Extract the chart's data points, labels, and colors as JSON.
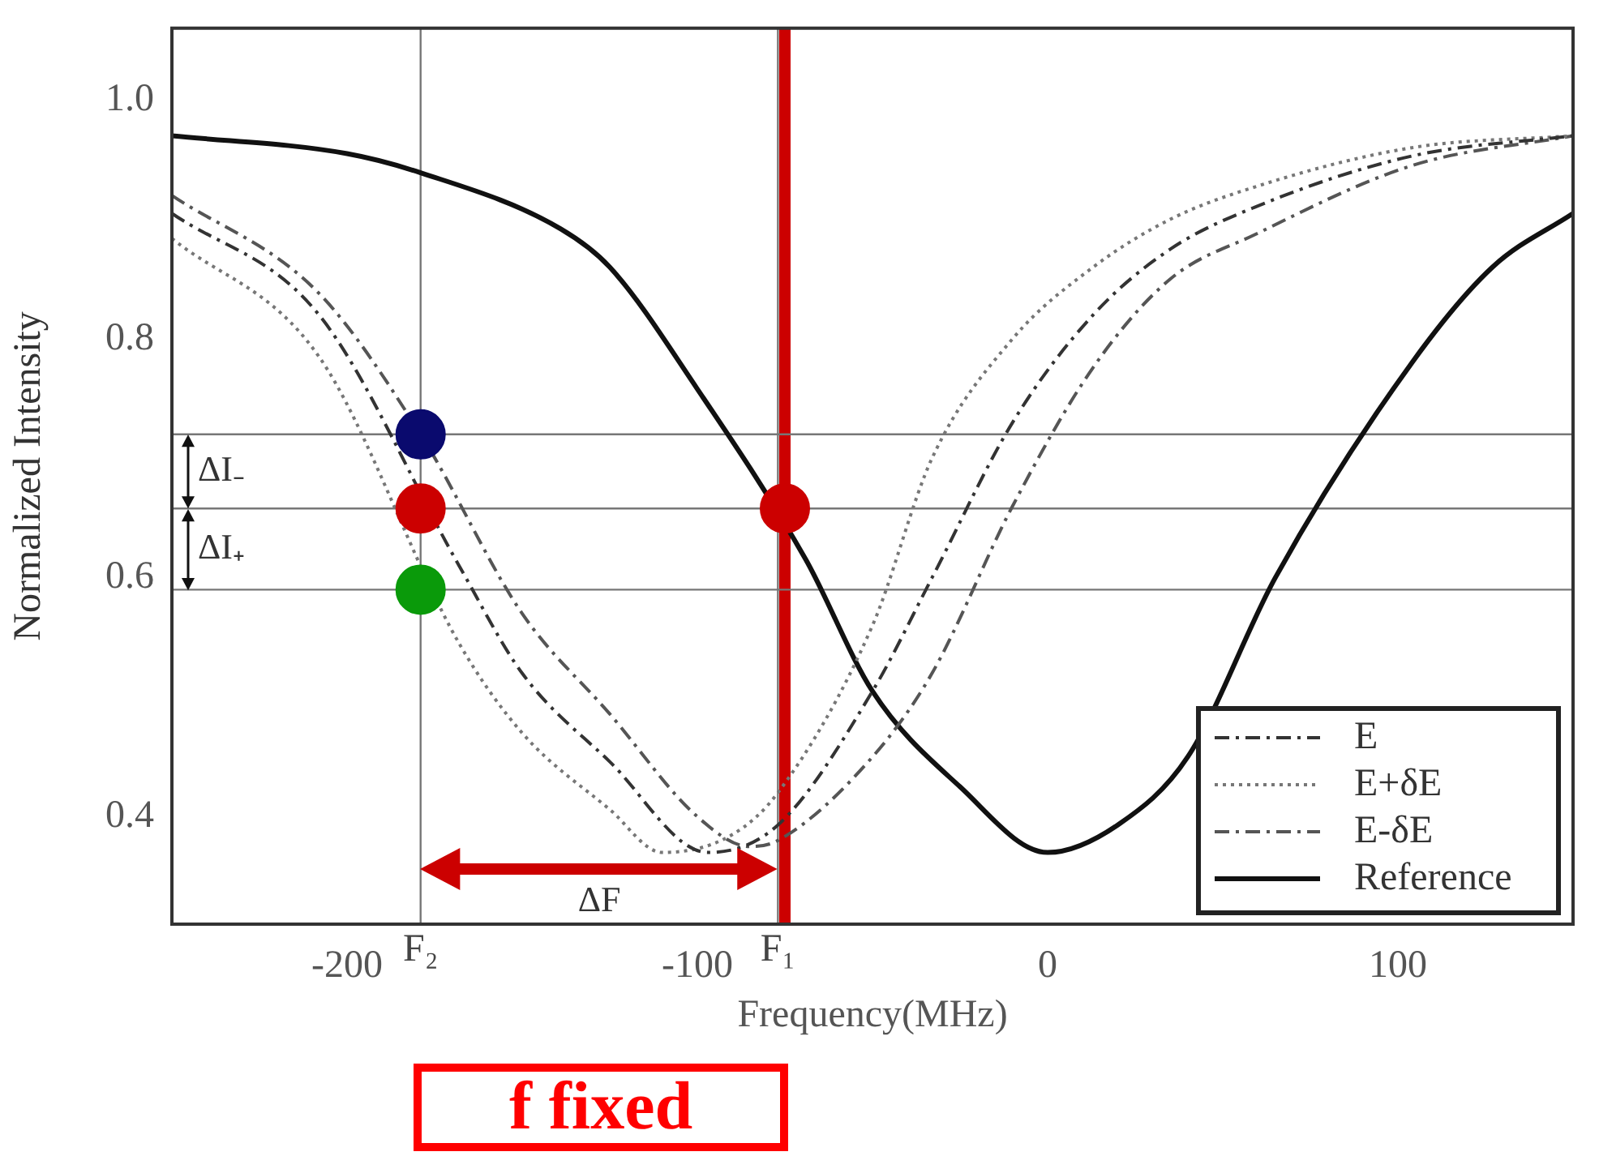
{
  "chart_data": {
    "type": "line",
    "xlabel": "Frequency(MHz)",
    "ylabel": "Normalized Intensity",
    "xlim": [
      -250,
      150
    ],
    "ylim": [
      0.31,
      1.06
    ],
    "xticks": [
      -200,
      -100,
      0,
      100
    ],
    "yticks": [
      0.4,
      0.6,
      0.8,
      {
        "value": 1,
        "label": "1.0"
      }
    ],
    "grid": false,
    "legend": "bottom right",
    "series": [
      {
        "name": "E",
        "color": "#333333",
        "line_style": "dashed",
        "marker": "none",
        "x": [
          -250,
          -208,
          -168,
          -150,
          -125,
          -97,
          -77,
          -50,
          -33,
          -10,
          13,
          35,
          59,
          104,
          150
        ],
        "values": [
          0.905,
          0.82,
          0.61,
          0.52,
          0.446,
          0.37,
          0.393,
          0.505,
          0.6,
          0.73,
          0.82,
          0.875,
          0.91,
          0.953,
          0.97
        ]
      },
      {
        "name": "E+δE",
        "color": "#777777",
        "line_style": "dotted",
        "marker": "none",
        "x": [
          -250,
          -208,
          -168,
          -150,
          -125,
          -110,
          -90,
          -77,
          -50,
          -33,
          -10,
          13,
          35,
          59,
          104,
          150
        ],
        "values": [
          0.884,
          0.785,
          0.545,
          0.47,
          0.406,
          0.37,
          0.385,
          0.42,
          0.56,
          0.7,
          0.8,
          0.86,
          0.9,
          0.927,
          0.96,
          0.97
        ]
      },
      {
        "name": "E-δE",
        "color": "#555555",
        "line_style": "dashed",
        "marker": "none",
        "x": [
          -250,
          -208,
          -179,
          -150,
          -125,
          -100,
          -85,
          -77,
          -50,
          -33,
          -10,
          13,
          35,
          59,
          104,
          150
        ],
        "values": [
          0.92,
          0.838,
          0.72,
          0.57,
          0.486,
          0.4,
          0.375,
          0.38,
          0.45,
          0.52,
          0.66,
          0.776,
          0.85,
          0.887,
          0.945,
          0.97
        ]
      },
      {
        "name": "Reference",
        "color": "#111111",
        "line_style": "solid",
        "marker": "none",
        "x": [
          -250,
          -200,
          -179,
          -139,
          -125,
          -100,
          -69,
          -50,
          -25,
          0,
          20,
          40,
          65,
          104,
          127,
          150
        ],
        "values": [
          0.97,
          0.955,
          0.939,
          0.892,
          0.86,
          0.758,
          0.615,
          0.505,
          0.425,
          0.37,
          0.393,
          0.45,
          0.6,
          0.78,
          0.86,
          0.905
        ]
      },
      {
        "type": "scatter",
        "marker": "circle",
        "x": [
          -179,
          -179,
          -179,
          -75
        ],
        "values": [
          0.72,
          0.658,
          0.59,
          0.658
        ],
        "colors": [
          "#0a0a6e",
          "#cc0000",
          "#0a9a0a",
          "#cc0000"
        ]
      }
    ],
    "ref_lines": [
      {
        "axis": "x",
        "value": -179,
        "label": "F₂"
      },
      {
        "axis": "x",
        "value": -77,
        "label": "F₁"
      },
      {
        "axis": "x",
        "value": -75,
        "color": "#cc0000"
      },
      {
        "axis": "y",
        "value": 0.72
      },
      {
        "axis": "y",
        "value": 0.658
      },
      {
        "axis": "y",
        "value": 0.59
      }
    ],
    "annotations": [
      "ΔI₋",
      "ΔI₊",
      "ΔF",
      "f fixed"
    ]
  }
}
